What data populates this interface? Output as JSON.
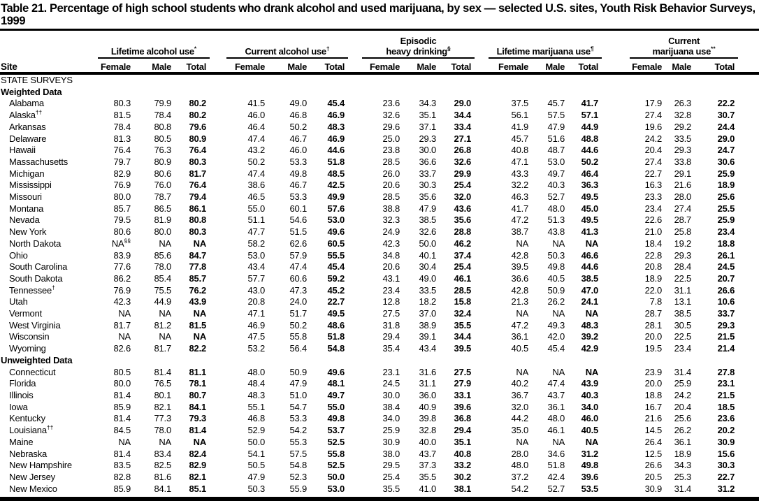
{
  "title": "Table 21. Percentage of high school students who drank alcohol and used marijuana, by sex — selected U.S. sites, Youth Risk Behavior Surveys, 1999",
  "colors": {
    "text": "#000000",
    "background": "#ffffff",
    "rules": "#000000"
  },
  "table": {
    "site_header": "Site",
    "column_groups": [
      {
        "lines": [
          "Lifetime alcohol use"
        ],
        "sup": "*"
      },
      {
        "lines": [
          "Current alcohol use"
        ],
        "sup": "†"
      },
      {
        "lines": [
          "Episodic",
          "heavy drinking"
        ],
        "sup": "§"
      },
      {
        "lines": [
          "Lifetime marijuana use"
        ],
        "sup": "¶"
      },
      {
        "lines": [
          "Current",
          "marijuana use"
        ],
        "sup": "**"
      }
    ],
    "sub_columns": [
      "Female",
      "Male",
      "Total"
    ],
    "section_label": "STATE SURVEYS",
    "subsections": [
      {
        "label": "Weighted Data",
        "rows": [
          {
            "site": "Alabama",
            "values": [
              "80.3",
              "79.9",
              "80.2",
              "41.5",
              "49.0",
              "45.4",
              "23.6",
              "34.3",
              "29.0",
              "37.5",
              "45.7",
              "41.7",
              "17.9",
              "26.3",
              "22.2"
            ]
          },
          {
            "site": "Alaska",
            "sup": "††",
            "values": [
              "81.5",
              "78.4",
              "80.2",
              "46.0",
              "46.8",
              "46.9",
              "32.6",
              "35.1",
              "34.4",
              "56.1",
              "57.5",
              "57.1",
              "27.4",
              "32.8",
              "30.7"
            ]
          },
          {
            "site": "Arkansas",
            "values": [
              "78.4",
              "80.8",
              "79.6",
              "46.4",
              "50.2",
              "48.3",
              "29.6",
              "37.1",
              "33.4",
              "41.9",
              "47.9",
              "44.9",
              "19.6",
              "29.2",
              "24.4"
            ]
          },
          {
            "site": "Delaware",
            "values": [
              "81.3",
              "80.5",
              "80.9",
              "47.4",
              "46.7",
              "46.9",
              "25.0",
              "29.3",
              "27.1",
              "45.7",
              "51.6",
              "48.8",
              "24.2",
              "33.5",
              "29.0"
            ]
          },
          {
            "site": "Hawaii",
            "values": [
              "76.4",
              "76.3",
              "76.4",
              "43.2",
              "46.0",
              "44.6",
              "23.8",
              "30.0",
              "26.8",
              "40.8",
              "48.7",
              "44.6",
              "20.4",
              "29.3",
              "24.7"
            ]
          },
          {
            "site": "Massachusetts",
            "values": [
              "79.7",
              "80.9",
              "80.3",
              "50.2",
              "53.3",
              "51.8",
              "28.5",
              "36.6",
              "32.6",
              "47.1",
              "53.0",
              "50.2",
              "27.4",
              "33.8",
              "30.6"
            ]
          },
          {
            "site": "Michigan",
            "values": [
              "82.9",
              "80.6",
              "81.7",
              "47.4",
              "49.8",
              "48.5",
              "26.0",
              "33.7",
              "29.9",
              "43.3",
              "49.7",
              "46.4",
              "22.7",
              "29.1",
              "25.9"
            ]
          },
          {
            "site": "Mississippi",
            "values": [
              "76.9",
              "76.0",
              "76.4",
              "38.6",
              "46.7",
              "42.5",
              "20.6",
              "30.3",
              "25.4",
              "32.2",
              "40.3",
              "36.3",
              "16.3",
              "21.6",
              "18.9"
            ]
          },
          {
            "site": "Missouri",
            "values": [
              "80.0",
              "78.7",
              "79.4",
              "46.5",
              "53.3",
              "49.9",
              "28.5",
              "35.6",
              "32.0",
              "46.3",
              "52.7",
              "49.5",
              "23.3",
              "28.0",
              "25.6"
            ]
          },
          {
            "site": "Montana",
            "values": [
              "85.7",
              "86.5",
              "86.1",
              "55.0",
              "60.1",
              "57.6",
              "38.8",
              "47.9",
              "43.6",
              "41.7",
              "48.0",
              "45.0",
              "23.4",
              "27.4",
              "25.5"
            ]
          },
          {
            "site": "Nevada",
            "values": [
              "79.5",
              "81.9",
              "80.8",
              "51.1",
              "54.6",
              "53.0",
              "32.3",
              "38.5",
              "35.6",
              "47.2",
              "51.3",
              "49.5",
              "22.6",
              "28.7",
              "25.9"
            ]
          },
          {
            "site": "New York",
            "values": [
              "80.6",
              "80.0",
              "80.3",
              "47.7",
              "51.5",
              "49.6",
              "24.9",
              "32.6",
              "28.8",
              "38.7",
              "43.8",
              "41.3",
              "21.0",
              "25.8",
              "23.4"
            ]
          },
          {
            "site": "North Dakota",
            "values": [
              "NA^§§",
              "NA",
              "NA",
              "58.2",
              "62.6",
              "60.5",
              "42.3",
              "50.0",
              "46.2",
              "NA",
              "NA",
              "NA",
              "18.4",
              "19.2",
              "18.8"
            ]
          },
          {
            "site": "Ohio",
            "values": [
              "83.9",
              "85.6",
              "84.7",
              "53.0",
              "57.9",
              "55.5",
              "34.8",
              "40.1",
              "37.4",
              "42.8",
              "50.3",
              "46.6",
              "22.8",
              "29.3",
              "26.1"
            ]
          },
          {
            "site": "South Carolina",
            "values": [
              "77.6",
              "78.0",
              "77.8",
              "43.4",
              "47.4",
              "45.4",
              "20.6",
              "30.4",
              "25.4",
              "39.5",
              "49.8",
              "44.6",
              "20.8",
              "28.4",
              "24.5"
            ]
          },
          {
            "site": "South Dakota",
            "values": [
              "86.2",
              "85.4",
              "85.7",
              "57.7",
              "60.6",
              "59.2",
              "43.1",
              "49.0",
              "46.1",
              "36.6",
              "40.5",
              "38.5",
              "18.9",
              "22.5",
              "20.7"
            ]
          },
          {
            "site": "Tennessee",
            "sup": "†",
            "values": [
              "76.9",
              "75.5",
              "76.2",
              "43.0",
              "47.3",
              "45.2",
              "23.4",
              "33.5",
              "28.5",
              "42.8",
              "50.9",
              "47.0",
              "22.0",
              "31.1",
              "26.6"
            ]
          },
          {
            "site": "Utah",
            "values": [
              "42.3",
              "44.9",
              "43.9",
              "20.8",
              "24.0",
              "22.7",
              "12.8",
              "18.2",
              "15.8",
              "21.3",
              "26.2",
              "24.1",
              "7.8",
              "13.1",
              "10.6"
            ]
          },
          {
            "site": "Vermont",
            "values": [
              "NA",
              "NA",
              "NA",
              "47.1",
              "51.7",
              "49.5",
              "27.5",
              "37.0",
              "32.4",
              "NA",
              "NA",
              "NA",
              "28.7",
              "38.5",
              "33.7"
            ]
          },
          {
            "site": "West Virginia",
            "values": [
              "81.7",
              "81.2",
              "81.5",
              "46.9",
              "50.2",
              "48.6",
              "31.8",
              "38.9",
              "35.5",
              "47.2",
              "49.3",
              "48.3",
              "28.1",
              "30.5",
              "29.3"
            ]
          },
          {
            "site": "Wisconsin",
            "values": [
              "NA",
              "NA",
              "NA",
              "47.5",
              "55.8",
              "51.8",
              "29.4",
              "39.1",
              "34.4",
              "36.1",
              "42.0",
              "39.2",
              "20.0",
              "22.5",
              "21.5"
            ]
          },
          {
            "site": "Wyoming",
            "values": [
              "82.6",
              "81.7",
              "82.2",
              "53.2",
              "56.4",
              "54.8",
              "35.4",
              "43.4",
              "39.5",
              "40.5",
              "45.4",
              "42.9",
              "19.5",
              "23.4",
              "21.4"
            ]
          }
        ]
      },
      {
        "label": "Unweighted Data",
        "rows": [
          {
            "site": "Connecticut",
            "values": [
              "80.5",
              "81.4",
              "81.1",
              "48.0",
              "50.9",
              "49.6",
              "23.1",
              "31.6",
              "27.5",
              "NA",
              "NA",
              "NA",
              "23.9",
              "31.4",
              "27.8"
            ]
          },
          {
            "site": "Florida",
            "values": [
              "80.0",
              "76.5",
              "78.1",
              "48.4",
              "47.9",
              "48.1",
              "24.5",
              "31.1",
              "27.9",
              "40.2",
              "47.4",
              "43.9",
              "20.0",
              "25.9",
              "23.1"
            ]
          },
          {
            "site": "Illinois",
            "values": [
              "81.4",
              "80.1",
              "80.7",
              "48.3",
              "51.0",
              "49.7",
              "30.0",
              "36.0",
              "33.1",
              "36.7",
              "43.7",
              "40.3",
              "18.8",
              "24.2",
              "21.5"
            ]
          },
          {
            "site": "Iowa",
            "values": [
              "85.9",
              "82.1",
              "84.1",
              "55.1",
              "54.7",
              "55.0",
              "38.4",
              "40.9",
              "39.6",
              "32.0",
              "36.1",
              "34.0",
              "16.7",
              "20.4",
              "18.5"
            ]
          },
          {
            "site": "Kentucky",
            "values": [
              "81.4",
              "77.3",
              "79.3",
              "46.8",
              "53.3",
              "49.8",
              "34.0",
              "39.8",
              "36.8",
              "44.2",
              "48.0",
              "46.0",
              "21.6",
              "25.6",
              "23.6"
            ]
          },
          {
            "site": "Louisiana",
            "sup": "††",
            "values": [
              "84.5",
              "78.0",
              "81.4",
              "52.9",
              "54.2",
              "53.7",
              "25.9",
              "32.8",
              "29.4",
              "35.0",
              "46.1",
              "40.5",
              "14.5",
              "26.2",
              "20.2"
            ]
          },
          {
            "site": "Maine",
            "values": [
              "NA",
              "NA",
              "NA",
              "50.0",
              "55.3",
              "52.5",
              "30.9",
              "40.0",
              "35.1",
              "NA",
              "NA",
              "NA",
              "26.4",
              "36.1",
              "30.9"
            ]
          },
          {
            "site": "Nebraska",
            "values": [
              "81.4",
              "83.4",
              "82.4",
              "54.1",
              "57.5",
              "55.8",
              "38.0",
              "43.7",
              "40.8",
              "28.0",
              "34.6",
              "31.2",
              "12.5",
              "18.9",
              "15.6"
            ]
          },
          {
            "site": "New Hampshire",
            "values": [
              "83.5",
              "82.5",
              "82.9",
              "50.5",
              "54.8",
              "52.5",
              "29.5",
              "37.3",
              "33.2",
              "48.0",
              "51.8",
              "49.8",
              "26.6",
              "34.3",
              "30.3"
            ]
          },
          {
            "site": "New Jersey",
            "values": [
              "82.8",
              "81.6",
              "82.1",
              "47.9",
              "52.3",
              "50.0",
              "25.4",
              "35.5",
              "30.2",
              "37.2",
              "42.4",
              "39.6",
              "20.5",
              "25.3",
              "22.7"
            ]
          },
          {
            "site": "New Mexico",
            "values": [
              "85.9",
              "84.1",
              "85.1",
              "50.3",
              "55.9",
              "53.0",
              "35.5",
              "41.0",
              "38.1",
              "54.2",
              "52.7",
              "53.5",
              "30.9",
              "31.4",
              "31.2"
            ]
          }
        ]
      }
    ]
  }
}
